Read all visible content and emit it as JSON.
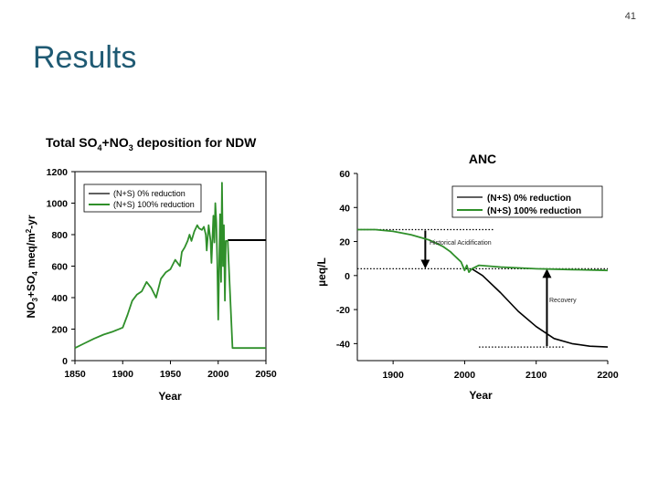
{
  "slide": {
    "number": "41",
    "title": "Results"
  },
  "colors": {
    "title": "#1f5a73",
    "green": "#2f8f2a",
    "black": "#000000"
  },
  "chart_data": [
    {
      "type": "line",
      "title_parts": [
        "Total SO",
        "4",
        "+NO",
        "3",
        " deposition for NDW"
      ],
      "xlabel": "Year",
      "ylabel_parts": [
        "NO",
        "3",
        "+SO",
        "4",
        " meq/m",
        "2",
        "-yr"
      ],
      "xlim": [
        1850,
        2050
      ],
      "ylim": [
        0,
        1200
      ],
      "x_ticks": [
        "1850",
        "1900",
        "1950",
        "2000",
        "2050"
      ],
      "y_ticks": [
        "0",
        "200",
        "400",
        "600",
        "800",
        "1000",
        "1200"
      ],
      "legend": {
        "position": "top-left",
        "entries": [
          "(N+S) 0% reduction",
          "(N+S) 100% reduction"
        ]
      },
      "series": [
        {
          "name": "(N+S) 0% reduction",
          "color": "#000000",
          "x": [
            2010,
            2050
          ],
          "y": [
            765,
            765
          ]
        },
        {
          "name": "(N+S) 100% reduction",
          "color": "#2f8f2a",
          "x": [
            1850,
            1860,
            1870,
            1880,
            1890,
            1900,
            1905,
            1910,
            1915,
            1920,
            1925,
            1930,
            1935,
            1940,
            1945,
            1950,
            1955,
            1960,
            1962,
            1965,
            1968,
            1970,
            1972,
            1975,
            1978,
            1980,
            1983,
            1985,
            1987,
            1988,
            1990,
            1992,
            1993,
            1995,
            1996,
            1997,
            1998,
            1999,
            2000,
            2002,
            2003,
            2004,
            2005,
            2006,
            2007,
            2008,
            2010,
            2015,
            2020,
            2050
          ],
          "y": [
            80,
            110,
            140,
            165,
            185,
            210,
            290,
            380,
            420,
            440,
            500,
            460,
            400,
            520,
            560,
            580,
            640,
            600,
            690,
            720,
            760,
            800,
            760,
            820,
            860,
            840,
            830,
            850,
            800,
            700,
            860,
            760,
            620,
            920,
            750,
            1000,
            880,
            640,
            260,
            930,
            500,
            1130,
            600,
            860,
            380,
            760,
            760,
            80,
            80,
            80
          ]
        }
      ]
    },
    {
      "type": "line",
      "title": "ANC",
      "xlabel": "Year",
      "ylabel": "µeq/L",
      "xlim": [
        1850,
        2200
      ],
      "ylim": [
        -50,
        60
      ],
      "x_ticks": [
        "1900",
        "2000",
        "2100",
        "2200"
      ],
      "y_ticks": [
        "60",
        "40",
        "20",
        "0",
        "-20",
        "-40"
      ],
      "legend": {
        "position": "top-right",
        "entries": [
          "(N+S) 0% reduction",
          "(N+S) 100% reduction"
        ]
      },
      "annotations": [
        "Historical Acidification",
        "Recovery"
      ],
      "reference_levels": {
        "pre_industrial": 27,
        "present": 4,
        "future_low": -42
      },
      "series": [
        {
          "name": "(N+S) 0% reduction",
          "color": "#000000",
          "x": [
            2010,
            2025,
            2050,
            2075,
            2100,
            2125,
            2150,
            2175,
            2200
          ],
          "y": [
            4,
            0,
            -10,
            -21,
            -30,
            -37,
            -40,
            -41.5,
            -42
          ]
        },
        {
          "name": "(N+S) 100% reduction",
          "color": "#2f8f2a",
          "x": [
            1850,
            1875,
            1900,
            1925,
            1950,
            1960,
            1970,
            1980,
            1985,
            1990,
            1995,
            2000,
            2003,
            2006,
            2010,
            2020,
            2050,
            2100,
            2150,
            2200
          ],
          "y": [
            27,
            27,
            26,
            24,
            21,
            19,
            17,
            14,
            12,
            10,
            8,
            3,
            6,
            2,
            4,
            6,
            5,
            4,
            3.5,
            3
          ]
        }
      ]
    }
  ]
}
